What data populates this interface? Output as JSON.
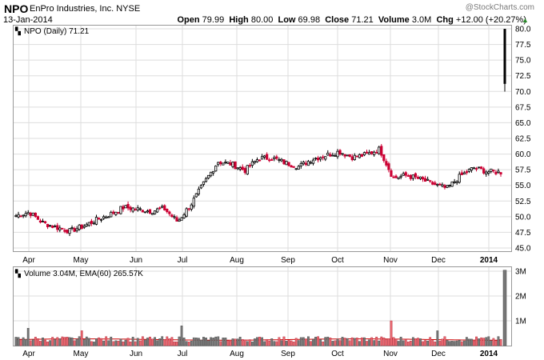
{
  "header": {
    "ticker": "NPO",
    "company": "EnPro Industries, Inc.",
    "exchange": "NYSE",
    "date": "13-Jan-2014",
    "watermark": "@StockCharts.com",
    "open_label": "Open",
    "open": "79.99",
    "high_label": "High",
    "high": "80.00",
    "low_label": "Low",
    "low": "69.98",
    "close_label": "Close",
    "close": "71.21",
    "volume_label": "Volume",
    "volume": "3.0M",
    "chg_label": "Chg",
    "chg": "+12.00 (+20.27%)",
    "chg_icon": "up-triangle-icon",
    "chg_color": "#2a8a2a"
  },
  "price_legend": "NPO (Daily) 71.21",
  "volume_legend": "Volume 3.04M, EMA(60) 265.57K",
  "colors": {
    "up": "#000000",
    "down": "#cc0033",
    "vol_up": "#777777",
    "vol_down": "#e8676f",
    "ema": "#cc0000",
    "grid": "#dddddd"
  },
  "chart_data": [
    {
      "type": "candlestick",
      "title": "NPO (Daily) 71.21",
      "y_ticks": [
        45.0,
        47.5,
        50.0,
        52.5,
        55.0,
        57.5,
        60.0,
        62.5,
        65.0,
        67.5,
        70.0,
        72.5,
        75.0,
        77.5,
        80.0
      ],
      "y_tick_labels": [
        "45.0",
        "47.5",
        "50.0",
        "52.5",
        "55.0",
        "57.5",
        "60.0",
        "62.5",
        "65.0",
        "67.5",
        "70.0",
        "72.5",
        "75.0",
        "77.5",
        "80.0"
      ],
      "ylim": [
        44.5,
        80.5
      ],
      "x_labels": [
        "Apr",
        "May",
        "Jun",
        "Jul",
        "Aug",
        "Sep",
        "Oct",
        "Nov",
        "Dec",
        "2014"
      ],
      "approx_close_by_week": [
        [
          "Apr",
          50.2
        ],
        [
          "Apr",
          50.7
        ],
        [
          "Apr",
          49.0
        ],
        [
          "Apr",
          48.3
        ],
        [
          "May",
          47.7
        ],
        [
          "May",
          48.5
        ],
        [
          "May",
          49.5
        ],
        [
          "May",
          50.4
        ],
        [
          "Jun",
          51.5
        ],
        [
          "Jun",
          51.2
        ],
        [
          "Jun",
          50.9
        ],
        [
          "Jun",
          51.3
        ],
        [
          "Jul",
          49.2
        ],
        [
          "Jul",
          52.0
        ],
        [
          "Jul",
          55.5
        ],
        [
          "Jul",
          58.8
        ],
        [
          "Aug",
          58.4
        ],
        [
          "Aug",
          57.4
        ],
        [
          "Aug",
          59.3
        ],
        [
          "Aug",
          59.4
        ],
        [
          "Sep",
          58.6
        ],
        [
          "Sep",
          58.0
        ],
        [
          "Sep",
          59.2
        ],
        [
          "Sep",
          59.8
        ],
        [
          "Oct",
          60.4
        ],
        [
          "Oct",
          59.5
        ],
        [
          "Oct",
          59.9
        ],
        [
          "Oct",
          60.8
        ],
        [
          "Nov",
          56.2
        ],
        [
          "Nov",
          56.6
        ],
        [
          "Nov",
          56.0
        ],
        [
          "Nov",
          55.2
        ],
        [
          "Dec",
          54.5
        ],
        [
          "Dec",
          56.5
        ],
        [
          "Dec",
          57.8
        ],
        [
          "Dec",
          57.2
        ],
        [
          "2014",
          57.1
        ],
        [
          "2014",
          71.21
        ]
      ],
      "last_bar": {
        "open": 79.99,
        "high": 80.0,
        "low": 69.98,
        "close": 71.21
      }
    },
    {
      "type": "bar",
      "title": "Volume 3.04M, EMA(60) 265.57K",
      "y_ticks": [
        "1M",
        "2M",
        "3M"
      ],
      "y_tick_values": [
        1000000,
        2000000,
        3000000
      ],
      "x_labels": [
        "Apr",
        "May",
        "Jun",
        "Jul",
        "Aug",
        "Sep",
        "Oct",
        "Nov",
        "Dec",
        "2014"
      ],
      "notable_volumes": [
        {
          "month": "Apr",
          "value": 700000
        },
        {
          "month": "May",
          "value": 600000
        },
        {
          "month": "Jul",
          "value": 800000
        },
        {
          "month": "Nov",
          "value": 1000000
        },
        {
          "month": "Dec",
          "value": 600000
        },
        {
          "month": "2014",
          "value": 3040000
        }
      ],
      "ema_60": 265570
    }
  ]
}
